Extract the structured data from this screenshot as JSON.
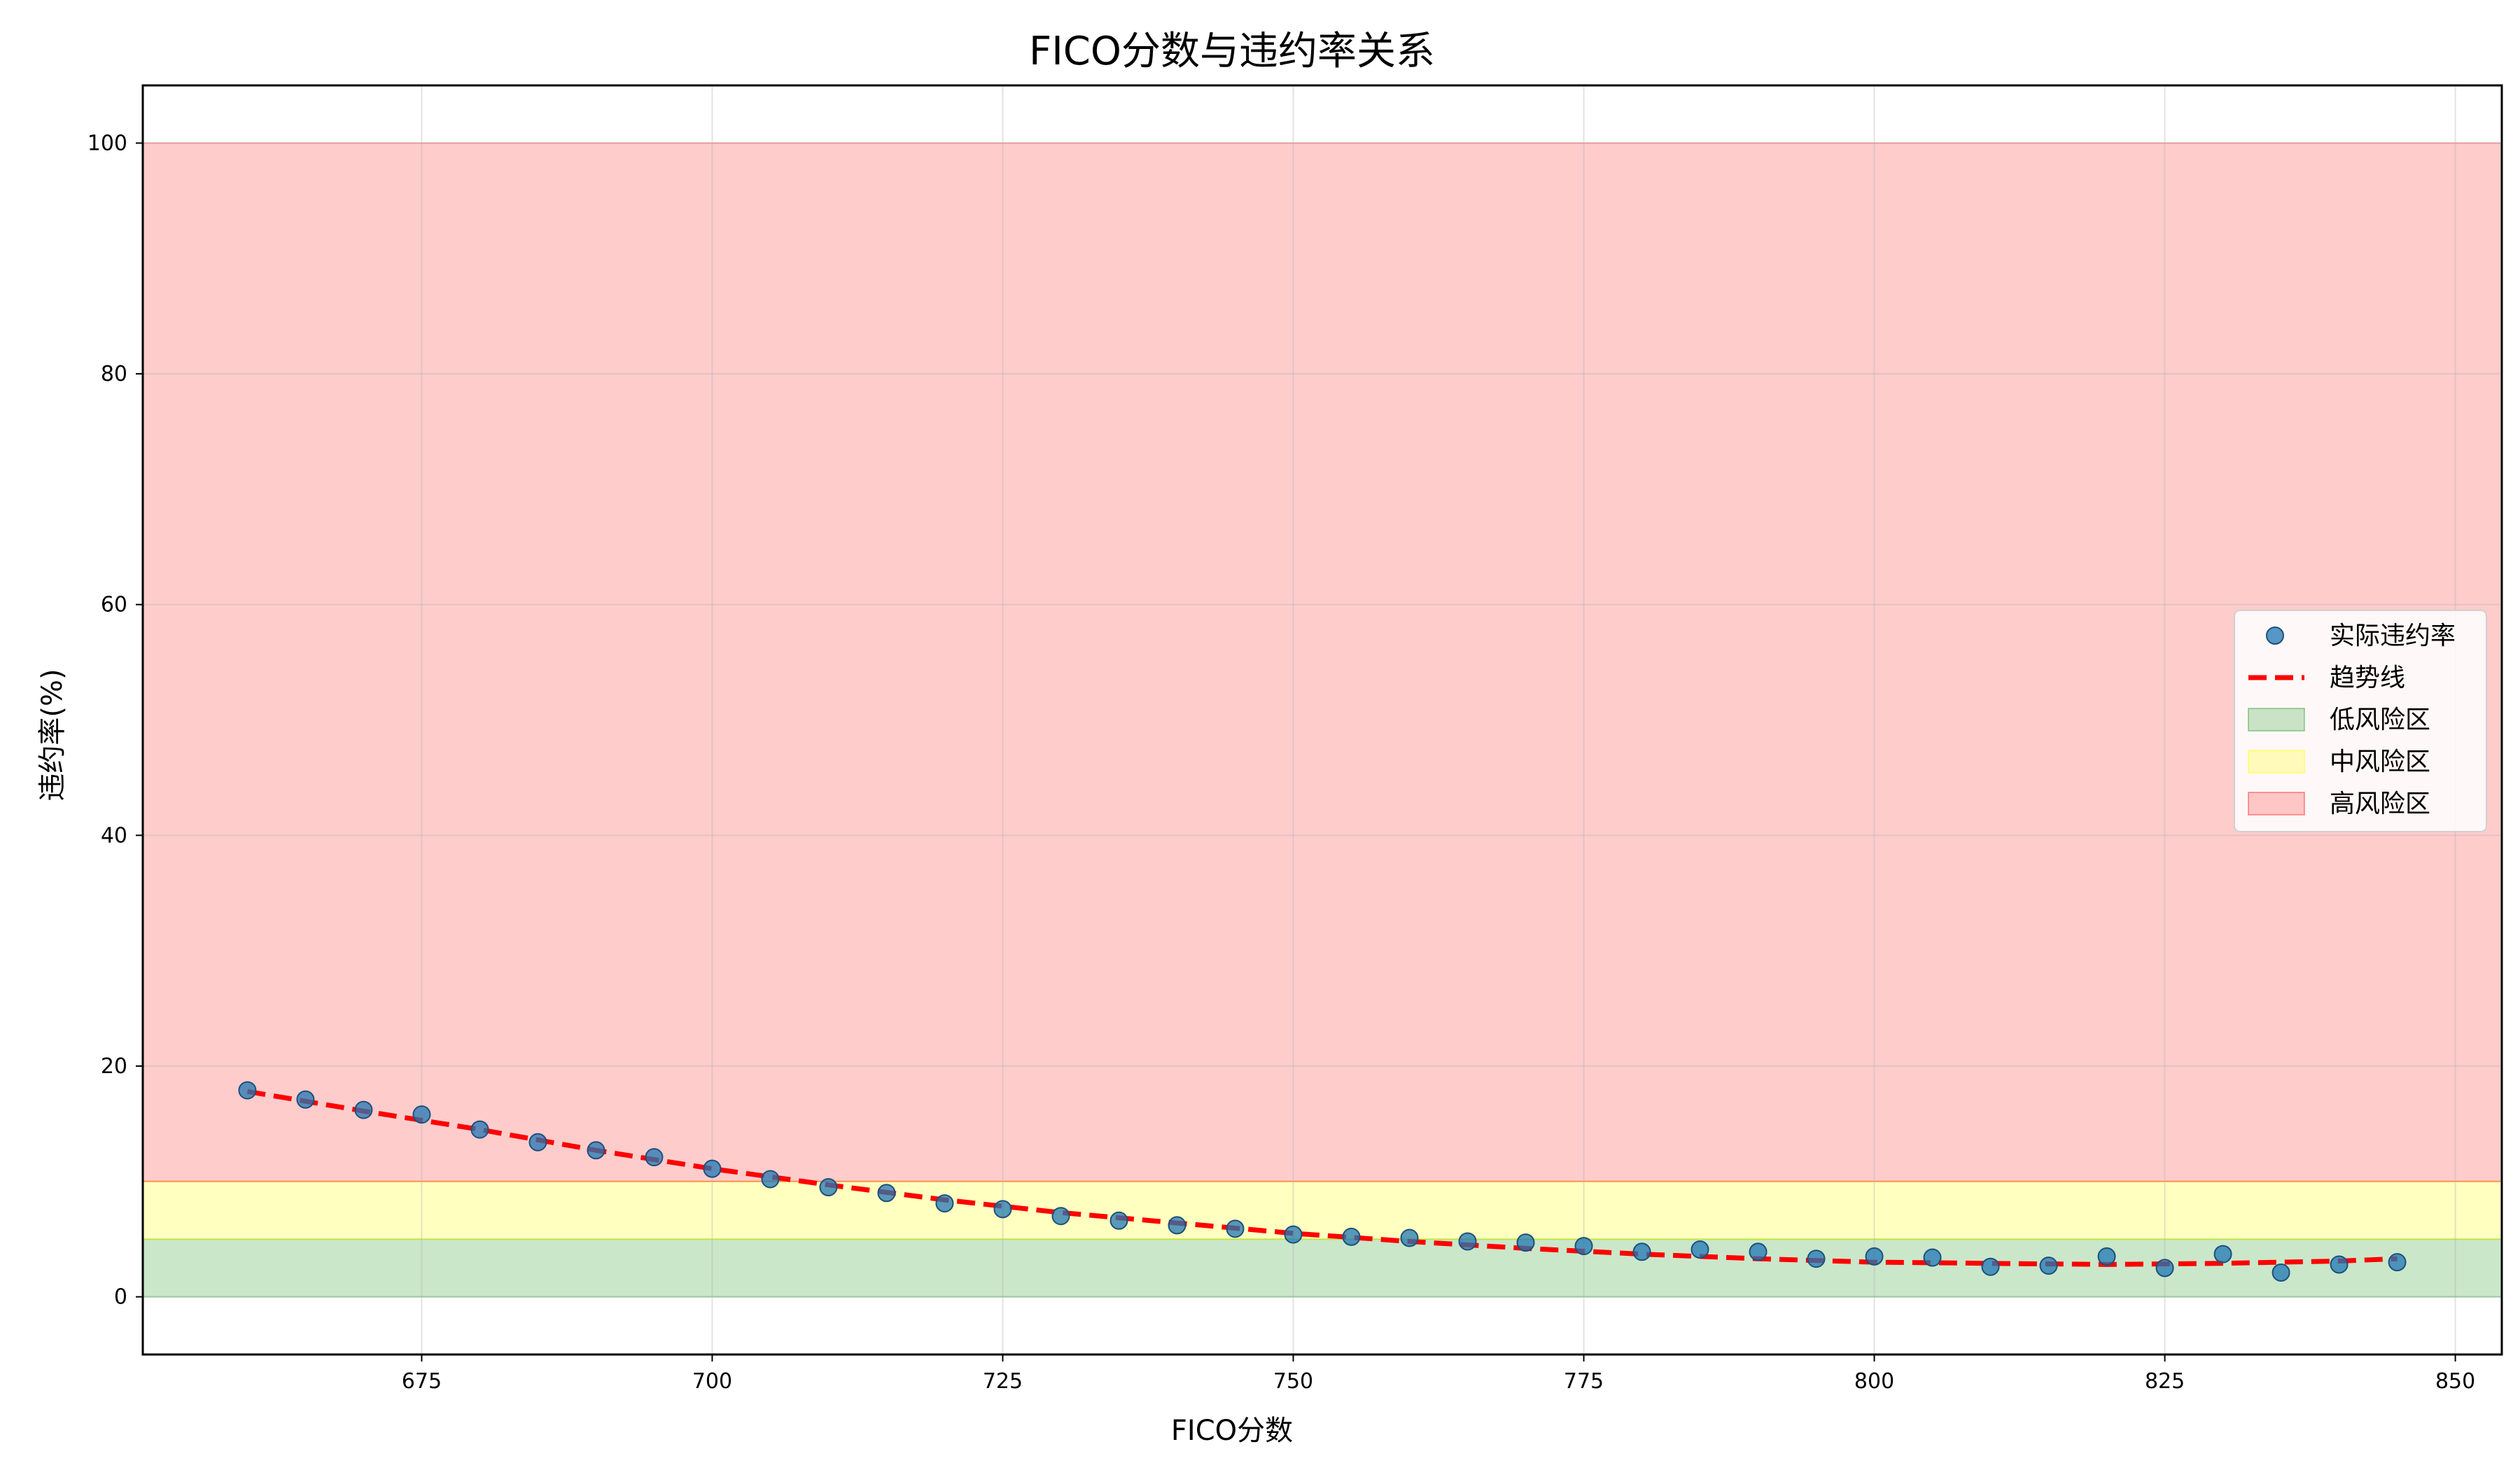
{
  "chart_data": {
    "type": "scatter",
    "title": "FICO分数与违约率关系",
    "xlabel": "FICO分数",
    "ylabel": "违约率(%)",
    "xlim": [
      651,
      854
    ],
    "ylim": [
      -5,
      105
    ],
    "xticks": [
      675,
      700,
      725,
      750,
      775,
      800,
      825,
      850
    ],
    "yticks": [
      0,
      20,
      40,
      60,
      80,
      100
    ],
    "grid": true,
    "legend_position": "right",
    "zones": [
      {
        "name": "低风险区",
        "y0": 0,
        "y1": 5,
        "color": "#2ca02c",
        "opacity": 0.25
      },
      {
        "name": "中风险区",
        "y0": 5,
        "y1": 10,
        "color": "#ffff00",
        "opacity": 0.25
      },
      {
        "name": "高风险区",
        "y0": 10,
        "y1": 100,
        "color": "#ff0000",
        "opacity": 0.2
      }
    ],
    "series": [
      {
        "name": "实际违约率",
        "kind": "scatter",
        "color": "#1f77b4",
        "x": [
          660,
          665,
          670,
          675,
          680,
          685,
          690,
          695,
          700,
          705,
          710,
          715,
          720,
          725,
          730,
          735,
          740,
          745,
          750,
          755,
          760,
          765,
          770,
          775,
          780,
          785,
          790,
          795,
          800,
          805,
          810,
          815,
          820,
          825,
          830,
          835,
          840,
          845
        ],
        "y": [
          17.9,
          17.1,
          16.2,
          15.8,
          14.5,
          13.4,
          12.7,
          12.1,
          11.1,
          10.2,
          9.5,
          9.0,
          8.1,
          7.6,
          7.0,
          6.6,
          6.2,
          5.9,
          5.4,
          5.2,
          5.1,
          4.8,
          4.7,
          4.4,
          3.9,
          4.1,
          3.9,
          3.3,
          3.5,
          3.4,
          2.6,
          2.7,
          3.5,
          2.5,
          3.7,
          2.1,
          2.8,
          3.0
        ]
      },
      {
        "name": "趋势线",
        "kind": "line",
        "color": "#ff0000",
        "dash": "dashed",
        "x": [
          660,
          670,
          680,
          690,
          700,
          710,
          720,
          730,
          740,
          750,
          760,
          770,
          780,
          790,
          800,
          810,
          820,
          830,
          840,
          845
        ],
        "y": [
          17.8,
          16.1,
          14.5,
          12.7,
          11.1,
          9.7,
          8.4,
          7.3,
          6.4,
          5.5,
          4.8,
          4.2,
          3.7,
          3.3,
          3.0,
          2.9,
          2.8,
          2.9,
          3.1,
          3.3
        ]
      }
    ]
  }
}
